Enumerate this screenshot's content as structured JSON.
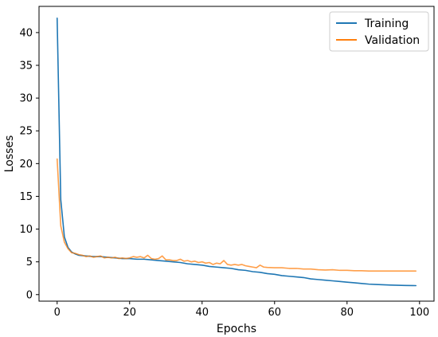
{
  "chart_data": {
    "type": "line",
    "title": "",
    "xlabel": "Epochs",
    "ylabel": "Losses",
    "xlim": [
      -5,
      104
    ],
    "ylim": [
      -1,
      44
    ],
    "xticks": [
      0,
      20,
      40,
      60,
      80,
      100
    ],
    "yticks": [
      0,
      5,
      10,
      15,
      20,
      25,
      30,
      35,
      40
    ],
    "grid": false,
    "legend": {
      "position": "top-right"
    },
    "series": [
      {
        "name": "Training",
        "color": "#1f77b4",
        "x": [
          0,
          1,
          2,
          3,
          4,
          5,
          6,
          8,
          10,
          12,
          14,
          16,
          18,
          20,
          22,
          24,
          26,
          28,
          30,
          32,
          34,
          36,
          38,
          40,
          42,
          44,
          46,
          48,
          50,
          52,
          54,
          56,
          58,
          60,
          62,
          64,
          66,
          68,
          70,
          72,
          74,
          76,
          78,
          80,
          82,
          84,
          86,
          88,
          90,
          92,
          94,
          96,
          98,
          99
        ],
        "y": [
          42.2,
          14.5,
          8.8,
          7.2,
          6.5,
          6.2,
          6.0,
          5.9,
          5.8,
          5.8,
          5.7,
          5.6,
          5.5,
          5.5,
          5.4,
          5.4,
          5.3,
          5.2,
          5.1,
          5.0,
          4.9,
          4.7,
          4.6,
          4.5,
          4.3,
          4.2,
          4.1,
          4.0,
          3.8,
          3.7,
          3.5,
          3.4,
          3.2,
          3.1,
          2.9,
          2.8,
          2.7,
          2.6,
          2.4,
          2.3,
          2.2,
          2.1,
          2.0,
          1.9,
          1.8,
          1.7,
          1.6,
          1.55,
          1.5,
          1.45,
          1.42,
          1.4,
          1.38,
          1.37
        ]
      },
      {
        "name": "Validation",
        "color": "#ff7f0e",
        "x": [
          0,
          1,
          2,
          3,
          4,
          5,
          6,
          7,
          8,
          9,
          10,
          11,
          12,
          13,
          14,
          15,
          16,
          17,
          18,
          19,
          20,
          21,
          22,
          23,
          24,
          25,
          26,
          27,
          28,
          29,
          30,
          31,
          32,
          33,
          34,
          35,
          36,
          37,
          38,
          39,
          40,
          41,
          42,
          43,
          44,
          45,
          46,
          47,
          48,
          49,
          50,
          51,
          52,
          53,
          54,
          55,
          56,
          57,
          58,
          60,
          62,
          64,
          66,
          68,
          70,
          72,
          74,
          76,
          78,
          80,
          82,
          84,
          86,
          88,
          90,
          92,
          94,
          96,
          98,
          99
        ],
        "y": [
          20.7,
          10.5,
          8.0,
          7.0,
          6.4,
          6.3,
          6.1,
          6.0,
          5.8,
          5.9,
          5.7,
          5.8,
          5.9,
          5.6,
          5.7,
          5.6,
          5.7,
          5.5,
          5.6,
          5.5,
          5.6,
          5.8,
          5.7,
          5.8,
          5.6,
          6.0,
          5.5,
          5.4,
          5.5,
          5.9,
          5.3,
          5.3,
          5.2,
          5.2,
          5.4,
          5.1,
          5.2,
          5.0,
          5.1,
          4.9,
          5.0,
          4.8,
          4.9,
          4.6,
          4.8,
          4.7,
          5.2,
          4.6,
          4.5,
          4.6,
          4.5,
          4.6,
          4.4,
          4.3,
          4.2,
          4.1,
          4.5,
          4.2,
          4.15,
          4.1,
          4.1,
          4.0,
          4.0,
          3.9,
          3.9,
          3.8,
          3.75,
          3.8,
          3.7,
          3.7,
          3.65,
          3.65,
          3.6,
          3.6,
          3.6,
          3.6,
          3.6,
          3.6,
          3.6,
          3.6
        ]
      }
    ]
  }
}
